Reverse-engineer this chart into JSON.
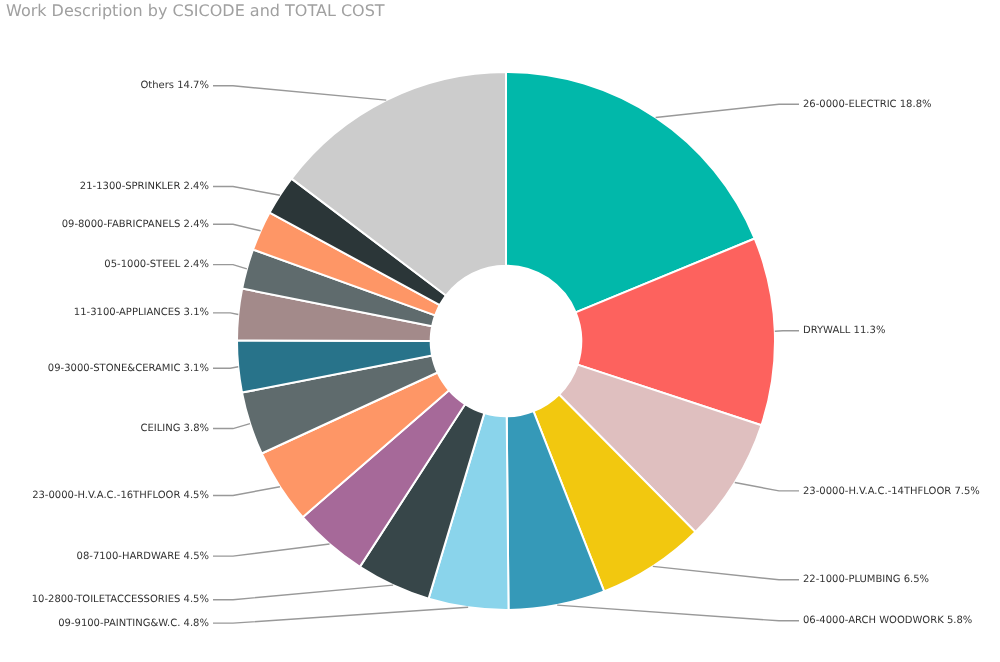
{
  "chart_data": {
    "type": "donut",
    "title": "Work Description by CSICODE and TOTAL COST",
    "categories": [
      "26-0000-ELECTRIC",
      "DRYWALL",
      "23-0000-H.V.A.C.-14THFLOOR",
      "22-1000-PLUMBING",
      "06-4000-ARCH WOODWORK",
      "09-9100-PAINTING&W.C.",
      "10-2800-TOILETACCESSORIES",
      "08-7100-HARDWARE",
      "23-0000-H.V.A.C.-16THFLOOR",
      "CEILING",
      "09-3000-STONE&CERAMIC",
      "11-3100-APPLIANCES",
      "05-1000-STEEL",
      "09-8000-FABRICPANELS",
      "21-1300-SPRINKLER",
      "Others"
    ],
    "values": [
      18.8,
      11.3,
      7.5,
      6.5,
      5.8,
      4.8,
      4.5,
      4.5,
      4.5,
      3.8,
      3.1,
      3.1,
      2.4,
      2.4,
      2.4,
      14.7
    ],
    "value_labels": [
      "18.8%",
      "11.3%",
      "7.5%",
      "6.5%",
      "5.8%",
      "4.8%",
      "4.5%",
      "4.5%",
      "4.5%",
      "3.8%",
      "3.1%",
      "3.1%",
      "2.4%",
      "2.4%",
      "2.4%",
      "14.7%"
    ],
    "colors": [
      "#01b8aa",
      "#fd625e",
      "#dfbfbf",
      "#f2c80f",
      "#3599b8",
      "#8ad4eb",
      "#374649",
      "#a66999",
      "#fe9666",
      "#5f6b6d",
      "#28738a",
      "#a38a8a",
      "#5f6b6d",
      "#fe9666",
      "#2b3638",
      "#cccccc"
    ],
    "legend": false
  }
}
